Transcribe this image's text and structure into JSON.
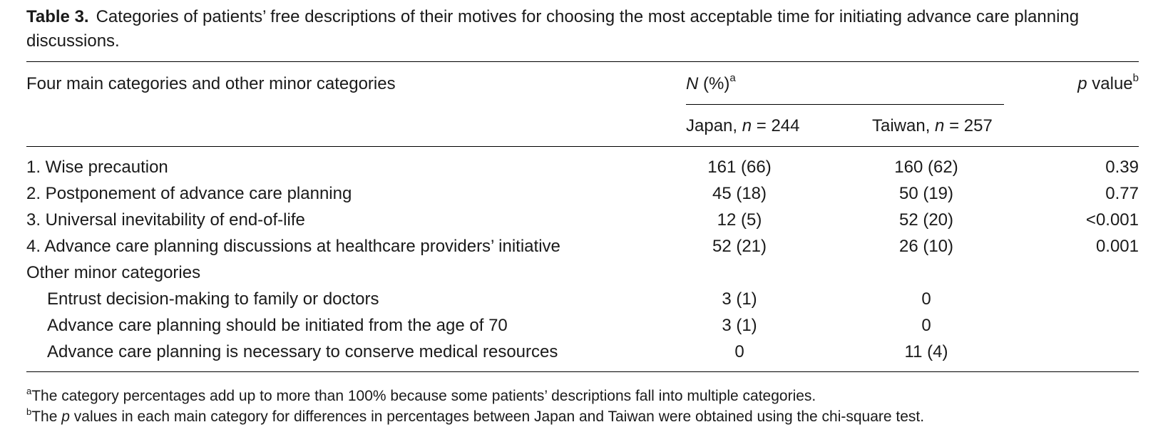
{
  "caption": {
    "label": "Table 3.",
    "text": "Categories of patients’ free descriptions of their motives for choosing the most acceptable time for initiating advance care planning discussions."
  },
  "header": {
    "description": "Four main categories and other minor categories",
    "n_label_italic": "N",
    "n_label_rest": " (%)",
    "n_sup": "a",
    "p_label_italic": "p",
    "p_label_rest": " value",
    "p_sup": "b",
    "japan_prefix": "Japan, ",
    "japan_n": "n",
    "japan_suffix": " = 244",
    "taiwan_prefix": "Taiwan, ",
    "taiwan_n": "n",
    "taiwan_suffix": " = 257"
  },
  "rows": [
    {
      "desc": "1. Wise precaution",
      "japan": "161 (66)",
      "taiwan": "160 (62)",
      "p": "0.39"
    },
    {
      "desc": "2. Postponement of advance care planning",
      "japan": "45 (18)",
      "taiwan": "50 (19)",
      "p": "0.77"
    },
    {
      "desc": "3. Universal inevitability of end-of-life",
      "japan": "12 (5)",
      "taiwan": "52 (20)",
      "p": "<0.001"
    },
    {
      "desc": "4. Advance care planning discussions at healthcare providers’ initiative",
      "japan": "52 (21)",
      "taiwan": "26 (10)",
      "p": "0.001"
    },
    {
      "desc": "Other minor categories",
      "japan": "",
      "taiwan": "",
      "p": ""
    },
    {
      "desc": "Entrust decision-making to family or doctors",
      "japan": "3 (1)",
      "taiwan": "0",
      "p": ""
    },
    {
      "desc": "Advance care planning should be initiated from the age of 70",
      "japan": "3 (1)",
      "taiwan": "0",
      "p": ""
    },
    {
      "desc": "Advance care planning is necessary to conserve medical resources",
      "japan": "0",
      "taiwan": "11 (4)",
      "p": ""
    }
  ],
  "footnotes": {
    "a_sup": "a",
    "a_text": "The category percentages add up to more than 100% because some patients’ descriptions fall into multiple categories.",
    "b_sup": "b",
    "b_text_before": "The ",
    "b_text_italic": "p",
    "b_text_after": " values in each main category for differences in percentages between Japan and Taiwan were obtained using the chi-square test."
  }
}
